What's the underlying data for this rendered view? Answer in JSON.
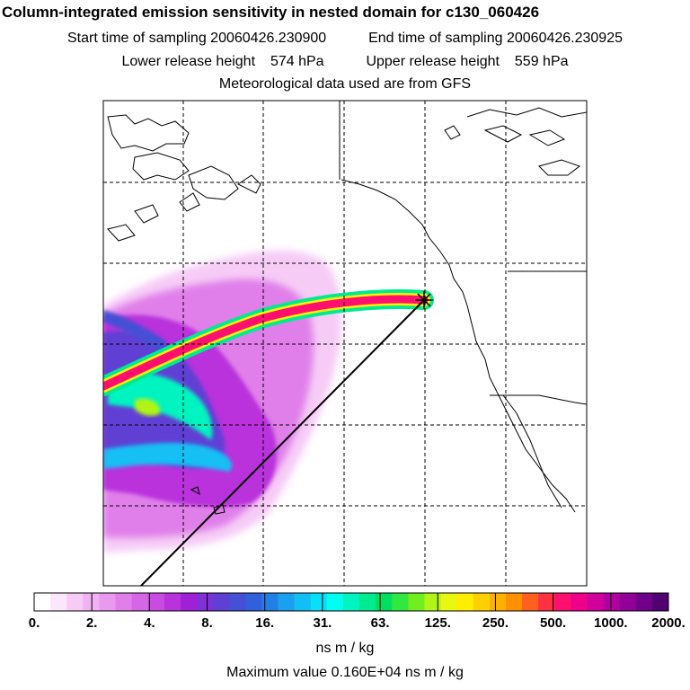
{
  "title": "Column-integrated emission sensitivity in nested domain for c130_060426",
  "header": {
    "start_label": "Start time of sampling",
    "start_value": "20060426.230900",
    "end_label": "End time of sampling",
    "end_value": "20060426.230925",
    "lower_label": "Lower release height",
    "lower_value": "574 hPa",
    "upper_label": "Upper release height",
    "upper_value": "559 hPa",
    "met": "Meteorological data used are from GFS"
  },
  "colorbar": {
    "tick_labels": [
      "0.",
      "2.",
      "4.",
      "8.",
      "16.",
      "31.",
      "63.",
      "125.",
      "250.",
      "500.",
      "1000.",
      "2000."
    ],
    "units": "ns m / kg",
    "colors": [
      "#ffffff",
      "#fbe6fb",
      "#f6ccf6",
      "#f0b2f2",
      "#e999ee",
      "#e07fea",
      "#d566e6",
      "#c84ce0",
      "#b933dc",
      "#a020d8",
      "#8030d6",
      "#6040d4",
      "#4550d6",
      "#3060dc",
      "#2280e4",
      "#1aa0ee",
      "#12bff4",
      "#08dff8",
      "#00fff0",
      "#00f4c0",
      "#00ea90",
      "#00e060",
      "#30e840",
      "#70ee20",
      "#b0f418",
      "#e8f810",
      "#ffee00",
      "#ffd000",
      "#ffb000",
      "#ff9000",
      "#ff6020",
      "#ff3040",
      "#ff1070",
      "#f0008a",
      "#d0009a",
      "#b000a0",
      "#900098",
      "#70008a",
      "#500070"
    ]
  },
  "max_value_text": "Maximum value  0.160E+04 ns m / kg",
  "map": {
    "release_marker": "release-point-marker",
    "colors": {
      "coast": "#000000",
      "grid": "#000000"
    }
  }
}
